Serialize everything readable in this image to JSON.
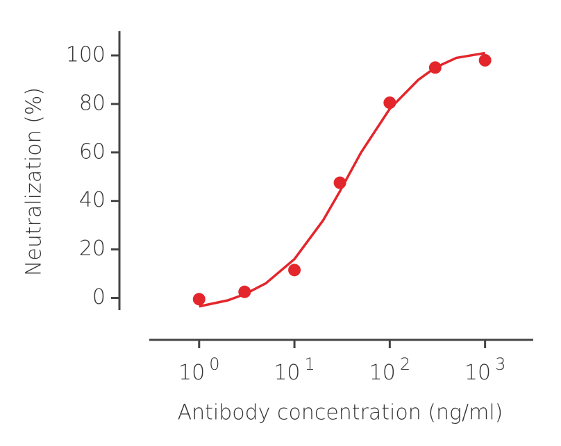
{
  "chart_data": {
    "type": "scatter",
    "x_label": "Antibody concentration (ng/ml)",
    "y_label": "Neutralization (%)",
    "x_log": true,
    "xlim": [
      0.3,
      3200
    ],
    "xticks": [
      {
        "value": 1,
        "label": "10",
        "exponent": "0"
      },
      {
        "value": 10,
        "label": "10",
        "exponent": "1"
      },
      {
        "value": 100,
        "label": "10",
        "exponent": "2"
      },
      {
        "value": 1000,
        "label": "10",
        "exponent": "3"
      }
    ],
    "ylim": [
      -5,
      110
    ],
    "yticks": [
      0,
      20,
      40,
      60,
      80,
      100
    ],
    "points": {
      "color": "#e3262c",
      "x": [
        1,
        3,
        10,
        30,
        100,
        300,
        1000
      ],
      "y": [
        -0.5,
        2.5,
        11.5,
        47.5,
        80.5,
        95,
        98
      ]
    },
    "curve": {
      "color": "#e3262c",
      "x": [
        1,
        2,
        3,
        5,
        10,
        20,
        30,
        50,
        100,
        200,
        300,
        500,
        1000
      ],
      "y": [
        -3.5,
        -1,
        1.5,
        6,
        16,
        32,
        44,
        60,
        78,
        90,
        95,
        99,
        101
      ]
    }
  }
}
